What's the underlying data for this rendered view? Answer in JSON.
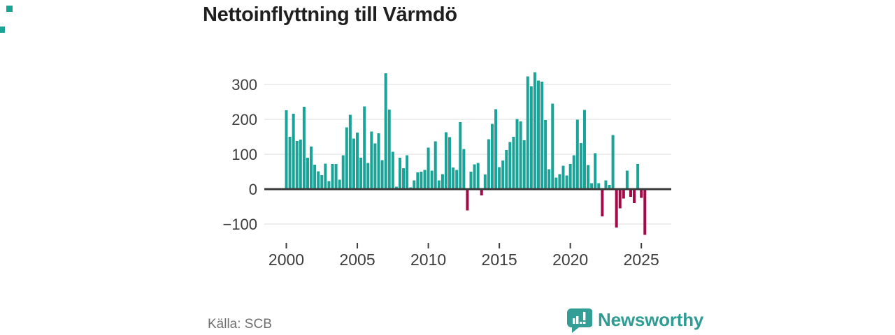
{
  "page": {
    "title": "Nettoinflyttning till Värmdö",
    "source": "Källa: SCB",
    "brand": "Newsworthy"
  },
  "colors": {
    "bar_positive": "#1aa396",
    "bar_negative": "#a30a48",
    "gridline": "#dcdcdc",
    "zero_axis": "#3b3b3b",
    "tick_text": "#3d3d3d",
    "title_text": "#1f1f1f",
    "source_text": "#707070",
    "brand_teal": "#2f9c94",
    "logo_icon_teal": "#339e96"
  },
  "chart_data": {
    "type": "bar",
    "title": "Nettoinflyttning till Värmdö",
    "ylabel": "",
    "xlabel": "",
    "frequency": "quarterly",
    "start_year": 2000,
    "start_quarter": 1,
    "quarters_per_year": 4,
    "values": [
      226,
      150,
      216,
      138,
      142,
      236,
      90,
      122,
      70,
      51,
      40,
      73,
      23,
      72,
      72,
      27,
      97,
      177,
      213,
      145,
      162,
      90,
      237,
      75,
      165,
      131,
      160,
      83,
      332,
      228,
      107,
      7,
      90,
      60,
      97,
      5,
      25,
      48,
      50,
      55,
      119,
      53,
      137,
      25,
      43,
      163,
      149,
      62,
      55,
      192,
      115,
      -61,
      50,
      71,
      75,
      -18,
      42,
      143,
      187,
      229,
      63,
      82,
      112,
      135,
      150,
      201,
      194,
      140,
      323,
      295,
      335,
      311,
      308,
      198,
      57,
      245,
      33,
      43,
      67,
      39,
      72,
      97,
      199,
      132,
      227,
      69,
      17,
      103,
      17,
      -78,
      25,
      12,
      155,
      -110,
      -55,
      -27,
      53,
      -22,
      -40,
      72,
      -25,
      -131
    ],
    "y_ticks": [
      {
        "value": 300,
        "label": "300"
      },
      {
        "value": 200,
        "label": "200"
      },
      {
        "value": 100,
        "label": "100"
      },
      {
        "value": 0,
        "label": "0"
      },
      {
        "value": -100,
        "label": "−100"
      }
    ],
    "x_ticks": [
      {
        "year": 2000,
        "label": "2000"
      },
      {
        "year": 2005,
        "label": "2005"
      },
      {
        "year": 2010,
        "label": "2010"
      },
      {
        "year": 2015,
        "label": "2015"
      },
      {
        "year": 2020,
        "label": "2020"
      },
      {
        "year": 2025,
        "label": "2025"
      }
    ],
    "ylim": [
      -150,
      350
    ],
    "grid": true,
    "legend": false
  }
}
